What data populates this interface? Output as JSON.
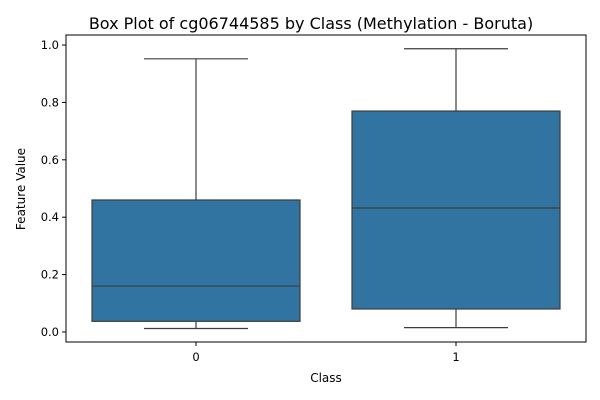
{
  "chart_data": {
    "type": "box",
    "title": "Box Plot of cg06744585 by Class (Methylation - Boruta)",
    "xlabel": "Class",
    "ylabel": "Feature Value",
    "ylim": [
      -0.035,
      1.035
    ],
    "yticks": [
      "0.0",
      "0.2",
      "0.4",
      "0.6",
      "0.8",
      "1.0"
    ],
    "grid": false,
    "categories": [
      "0",
      "1"
    ],
    "boxes": [
      {
        "category": "0",
        "whisker_low": 0.012,
        "q1": 0.037,
        "median": 0.16,
        "q3": 0.46,
        "whisker_high": 0.952
      },
      {
        "category": "1",
        "whisker_low": 0.015,
        "q1": 0.08,
        "median": 0.432,
        "q3": 0.77,
        "whisker_high": 0.987
      }
    ],
    "colors": {
      "box_fill": "#3274a1",
      "lines": "#3d3d3d",
      "axes": "#000000"
    }
  }
}
